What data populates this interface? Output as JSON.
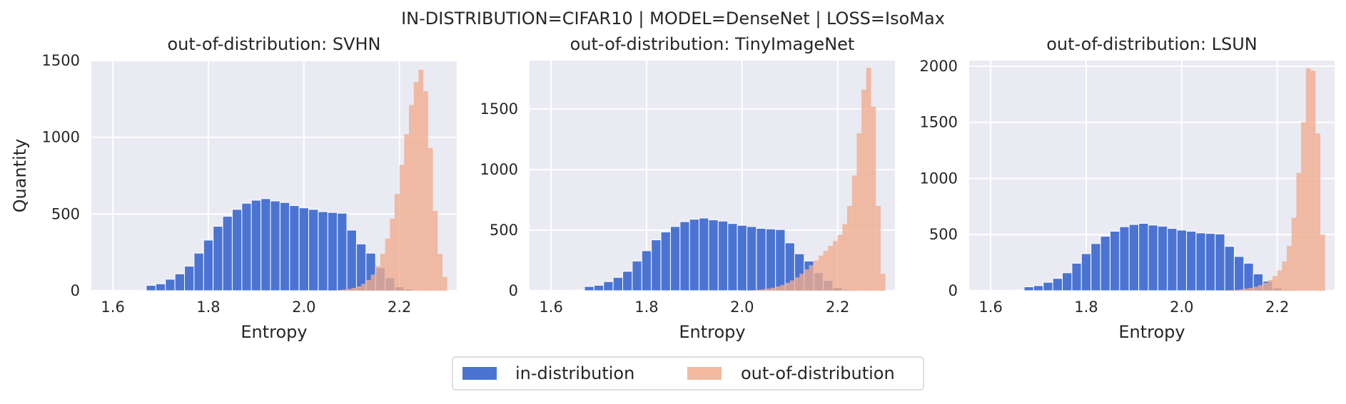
{
  "figure": {
    "suptitle": "IN-DISTRIBUTION=CIFAR10 | MODEL=DenseNet | LOSS=IsoMax"
  },
  "legend": {
    "entries": [
      {
        "label": "in-distribution",
        "color": "#4b74d2"
      },
      {
        "label": "out-of-distribution",
        "color": "#f0ad8f"
      }
    ],
    "placement": "bottom-center"
  },
  "colors": {
    "in_distribution": "#4b74d2",
    "out_of_distribution": "#f0ad8f",
    "background": "#eaeaf2",
    "grid": "#ffffff"
  },
  "chart_data": [
    {
      "type": "bar",
      "title": "out-of-distribution: SVHN",
      "xlabel": "Entropy",
      "ylabel": "Quantity",
      "xlim": [
        1.555,
        2.32
      ],
      "ylim": [
        0,
        1500
      ],
      "xticks": [
        1.6,
        1.8,
        2.0,
        2.2
      ],
      "xtick_labels": [
        "1.6",
        "1.8",
        "2.0",
        "2.2"
      ],
      "yticks": [
        0,
        500,
        1000,
        1500
      ],
      "ytick_labels": [
        "0",
        "500",
        "1000",
        "1500"
      ],
      "grid": true,
      "series": [
        {
          "name": "in-distribution",
          "bin_edges": [
            1.65,
            1.67,
            1.69,
            1.71,
            1.73,
            1.75,
            1.77,
            1.79,
            1.81,
            1.83,
            1.85,
            1.87,
            1.89,
            1.91,
            1.93,
            1.95,
            1.97,
            1.99,
            2.01,
            2.03,
            2.05,
            2.07,
            2.09,
            2.11,
            2.13,
            2.15,
            2.17,
            2.19,
            2.21,
            2.23,
            2.25,
            2.27,
            2.29
          ],
          "values": [
            5,
            35,
            45,
            75,
            110,
            160,
            245,
            330,
            420,
            485,
            530,
            570,
            590,
            600,
            585,
            575,
            555,
            540,
            530,
            515,
            510,
            505,
            395,
            305,
            245,
            150,
            85,
            25,
            10,
            3,
            1,
            0
          ]
        },
        {
          "name": "out-of-distribution",
          "bin_edges": [
            2.05,
            2.06,
            2.07,
            2.08,
            2.09,
            2.1,
            2.11,
            2.12,
            2.13,
            2.14,
            2.15,
            2.16,
            2.17,
            2.18,
            2.19,
            2.2,
            2.21,
            2.22,
            2.23,
            2.24,
            2.25,
            2.26,
            2.27,
            2.28,
            2.29,
            2.3
          ],
          "values": [
            2,
            3,
            5,
            8,
            12,
            18,
            28,
            45,
            70,
            105,
            160,
            240,
            340,
            470,
            630,
            820,
            1020,
            1210,
            1360,
            1440,
            1300,
            930,
            520,
            240,
            90
          ]
        }
      ]
    },
    {
      "type": "bar",
      "title": "out-of-distribution: TinyImageNet",
      "xlabel": "Entropy",
      "ylabel": "",
      "xlim": [
        1.555,
        2.32
      ],
      "ylim": [
        0,
        1900
      ],
      "xticks": [
        1.6,
        1.8,
        2.0,
        2.2
      ],
      "xtick_labels": [
        "1.6",
        "1.8",
        "2.0",
        "2.2"
      ],
      "yticks": [
        0,
        500,
        1000,
        1500
      ],
      "ytick_labels": [
        "0",
        "500",
        "1000",
        "1500"
      ],
      "grid": true,
      "series": [
        {
          "name": "in-distribution",
          "bin_edges": [
            1.65,
            1.67,
            1.69,
            1.71,
            1.73,
            1.75,
            1.77,
            1.79,
            1.81,
            1.83,
            1.85,
            1.87,
            1.89,
            1.91,
            1.93,
            1.95,
            1.97,
            1.99,
            2.01,
            2.03,
            2.05,
            2.07,
            2.09,
            2.11,
            2.13,
            2.15,
            2.17,
            2.19,
            2.21,
            2.23,
            2.25,
            2.27,
            2.29
          ],
          "values": [
            5,
            35,
            45,
            75,
            110,
            160,
            245,
            330,
            420,
            485,
            530,
            570,
            590,
            600,
            585,
            575,
            555,
            540,
            530,
            515,
            510,
            505,
            395,
            305,
            245,
            150,
            85,
            25,
            10,
            3,
            1,
            0
          ]
        },
        {
          "name": "out-of-distribution",
          "bin_edges": [
            2.0,
            2.01,
            2.02,
            2.03,
            2.04,
            2.05,
            2.06,
            2.07,
            2.08,
            2.09,
            2.1,
            2.11,
            2.12,
            2.13,
            2.14,
            2.15,
            2.16,
            2.17,
            2.18,
            2.19,
            2.2,
            2.21,
            2.22,
            2.23,
            2.24,
            2.25,
            2.26,
            2.27,
            2.28,
            2.29,
            2.3
          ],
          "values": [
            2,
            3,
            5,
            8,
            12,
            18,
            25,
            35,
            48,
            65,
            85,
            110,
            140,
            175,
            210,
            250,
            290,
            330,
            370,
            410,
            460,
            550,
            700,
            950,
            1300,
            1660,
            1840,
            1520,
            700,
            140
          ]
        }
      ]
    },
    {
      "type": "bar",
      "title": "out-of-distribution: LSUN",
      "xlabel": "Entropy",
      "ylabel": "",
      "xlim": [
        1.555,
        2.32
      ],
      "ylim": [
        0,
        2050
      ],
      "xticks": [
        1.6,
        1.8,
        2.0,
        2.2
      ],
      "xtick_labels": [
        "1.6",
        "1.8",
        "2.0",
        "2.2"
      ],
      "yticks": [
        0,
        500,
        1000,
        1500,
        2000
      ],
      "ytick_labels": [
        "0",
        "500",
        "1000",
        "1500",
        "2000"
      ],
      "grid": true,
      "series": [
        {
          "name": "in-distribution",
          "bin_edges": [
            1.65,
            1.67,
            1.69,
            1.71,
            1.73,
            1.75,
            1.77,
            1.79,
            1.81,
            1.83,
            1.85,
            1.87,
            1.89,
            1.91,
            1.93,
            1.95,
            1.97,
            1.99,
            2.01,
            2.03,
            2.05,
            2.07,
            2.09,
            2.11,
            2.13,
            2.15,
            2.17,
            2.19,
            2.21,
            2.23,
            2.25,
            2.27,
            2.29
          ],
          "values": [
            5,
            35,
            45,
            75,
            110,
            160,
            245,
            330,
            420,
            485,
            530,
            570,
            590,
            600,
            585,
            575,
            555,
            540,
            530,
            515,
            510,
            505,
            395,
            305,
            245,
            150,
            85,
            25,
            10,
            3,
            1,
            0
          ]
        },
        {
          "name": "out-of-distribution",
          "bin_edges": [
            2.08,
            2.09,
            2.1,
            2.11,
            2.12,
            2.13,
            2.14,
            2.15,
            2.16,
            2.17,
            2.18,
            2.19,
            2.2,
            2.21,
            2.22,
            2.23,
            2.24,
            2.25,
            2.26,
            2.27,
            2.28,
            2.29,
            2.3
          ],
          "values": [
            2,
            3,
            5,
            8,
            12,
            18,
            25,
            35,
            50,
            70,
            95,
            130,
            180,
            260,
            400,
            650,
            1050,
            1500,
            1980,
            1960,
            1400,
            500
          ]
        }
      ]
    }
  ]
}
